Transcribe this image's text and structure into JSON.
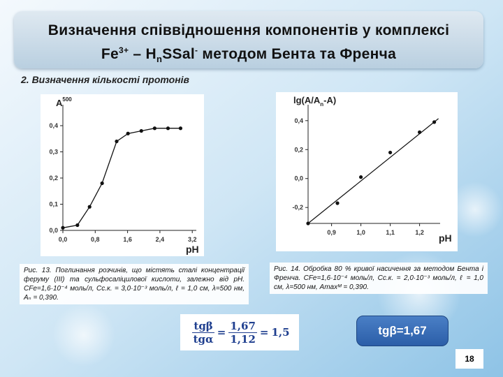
{
  "title": {
    "line1": "Визначення співвідношення компонентів у комплексі",
    "line2": [
      "Fe",
      "3+",
      " – H",
      "n",
      "SSal",
      "-",
      " методом Бента та Френча"
    ]
  },
  "section": "2. Визначення кількості протонів",
  "captions": [
    "Рис. 13. Поглинання розчинів, що містять сталі концентрації феруму (ІІІ) та сульфосаліцилової кислоти, залежно від рН. CFe=1,6·10⁻⁴ моль/л, Cс.к. = 3,0·10⁻³ моль/л, ℓ = 1,0 см, λ=500 нм, Aₙ = 0,390.",
    "Рис. 14. Обробка 80 % кривої насичення за методом Бента і Френча. CFe=1,6·10⁻⁴ моль/л, Cс.к. = 2,0·10⁻³ моль/л, ℓ = 1,0 см, λ=500 нм, Amaxᴹ = 0,390."
  ],
  "formula": {
    "num_left": "tgβ",
    "den_left": "tgα",
    "num_right": "1,67",
    "den_right": "1,12",
    "result": "1,5"
  },
  "result": "tgβ=1,67",
  "page_number": "18",
  "chart_data": [
    {
      "type": "line",
      "ylabel": [
        "A",
        "500"
      ],
      "xlabel": "pH",
      "color": "#111111",
      "x": [
        0.0,
        0.36,
        0.66,
        0.97,
        1.33,
        1.61,
        1.94,
        2.27,
        2.6,
        2.91
      ],
      "values": [
        0.01,
        0.02,
        0.09,
        0.18,
        0.34,
        0.37,
        0.38,
        0.39,
        0.39,
        0.39
      ],
      "xlim": [
        0,
        3.3
      ],
      "ylim": [
        0,
        0.48
      ],
      "xticks": [
        {
          "value": 0,
          "label": "0,0"
        },
        {
          "value": 0.8,
          "label": "0,8"
        },
        {
          "value": 1.6,
          "label": "1,6"
        },
        {
          "value": 2.4,
          "label": "2,4"
        },
        {
          "value": 3.2,
          "label": "3,2"
        }
      ],
      "yticks": [
        {
          "value": 0,
          "label": "0,0"
        },
        {
          "value": 0.1,
          "label": "0,1"
        },
        {
          "value": 0.2,
          "label": "0,2"
        },
        {
          "value": 0.3,
          "label": "0,3"
        },
        {
          "value": 0.4,
          "label": "0,4"
        }
      ]
    },
    {
      "type": "scatter",
      "ylabel": [
        "lg(A/A",
        "n",
        "-A)"
      ],
      "xlabel": "pH",
      "color": "#111111",
      "x": [
        0.82,
        0.92,
        1.0,
        1.1,
        1.2,
        1.25
      ],
      "values": [
        -0.31,
        -0.17,
        0.01,
        0.18,
        0.32,
        0.39
      ],
      "xlim": [
        0.82,
        1.27
      ],
      "ylim": [
        -0.31,
        0.51
      ],
      "xticks": [
        {
          "value": 0.9,
          "label": "0,9"
        },
        {
          "value": 1.0,
          "label": "1,0"
        },
        {
          "value": 1.1,
          "label": "1,1"
        },
        {
          "value": 1.2,
          "label": "1,2"
        }
      ],
      "yticks": [
        {
          "value": -0.2,
          "label": "-0,2"
        },
        {
          "value": 0,
          "label": "0,0"
        },
        {
          "value": 0.2,
          "label": "0,2"
        },
        {
          "value": 0.4,
          "label": "0,4"
        }
      ]
    }
  ]
}
